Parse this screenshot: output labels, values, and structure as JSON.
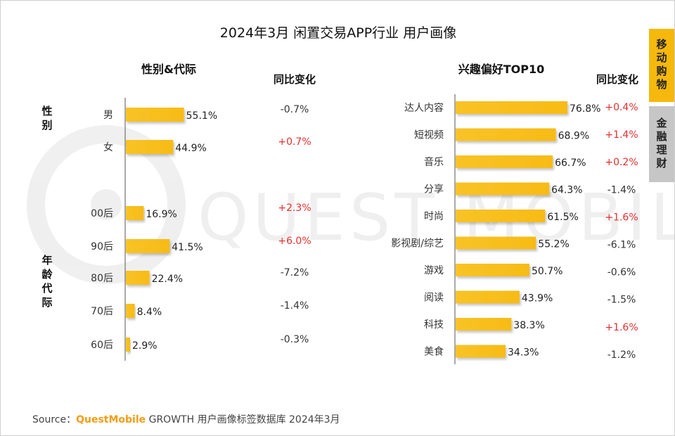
{
  "title": "2024年3月 闲置交易APP行业 用户画像",
  "side_tabs": [
    "移动购物",
    "金融理财"
  ],
  "watermark": "QUEST MOBILE",
  "footer": {
    "prefix": "Source：",
    "brand": "QuestMobile",
    "rest": " GROWTH 用户画像标签数据库 2024年3月"
  },
  "colors": {
    "bar": "#f7bb16",
    "positive": "#e0302e",
    "negative": "#333333",
    "tab_active": "#f6b80c",
    "tab_inactive": "#c6c6c6"
  },
  "chart_data": [
    {
      "type": "bar",
      "title": "性别&代际",
      "change_header": "同比变化",
      "groups": [
        {
          "name": "性别",
          "categories": [
            "男",
            "女"
          ]
        },
        {
          "name": "年龄代际",
          "categories": [
            "00后",
            "90后",
            "80后",
            "70后",
            "60后"
          ]
        }
      ],
      "categories": [
        "男",
        "女",
        "00后",
        "90后",
        "80后",
        "70后",
        "60后"
      ],
      "values": [
        55.1,
        44.9,
        16.9,
        41.5,
        22.4,
        8.4,
        2.9
      ],
      "value_labels": [
        "55.1%",
        "44.9%",
        "16.9%",
        "41.5%",
        "22.4%",
        "8.4%",
        "2.9%"
      ],
      "yoy_change": [
        "-0.7%",
        "+0.7%",
        "+2.3%",
        "+6.0%",
        "-7.2%",
        "-1.4%",
        "-0.3%"
      ],
      "unit": "%"
    },
    {
      "type": "bar",
      "title": "兴趣偏好TOP10",
      "change_header": "同比变化",
      "categories": [
        "达人内容",
        "短视频",
        "音乐",
        "分享",
        "时尚",
        "影视剧/综艺",
        "游戏",
        "阅读",
        "科技",
        "美食"
      ],
      "values": [
        76.8,
        68.9,
        66.7,
        64.3,
        61.5,
        55.2,
        50.7,
        43.9,
        38.3,
        34.3
      ],
      "value_labels": [
        "76.8%",
        "68.9%",
        "66.7%",
        "64.3%",
        "61.5%",
        "55.2%",
        "50.7%",
        "43.9%",
        "38.3%",
        "34.3%"
      ],
      "yoy_change": [
        "+0.4%",
        "+1.4%",
        "+0.2%",
        "-1.4%",
        "+1.6%",
        "-6.1%",
        "-0.6%",
        "-1.5%",
        "+1.6%",
        "-1.2%"
      ],
      "unit": "%"
    }
  ]
}
